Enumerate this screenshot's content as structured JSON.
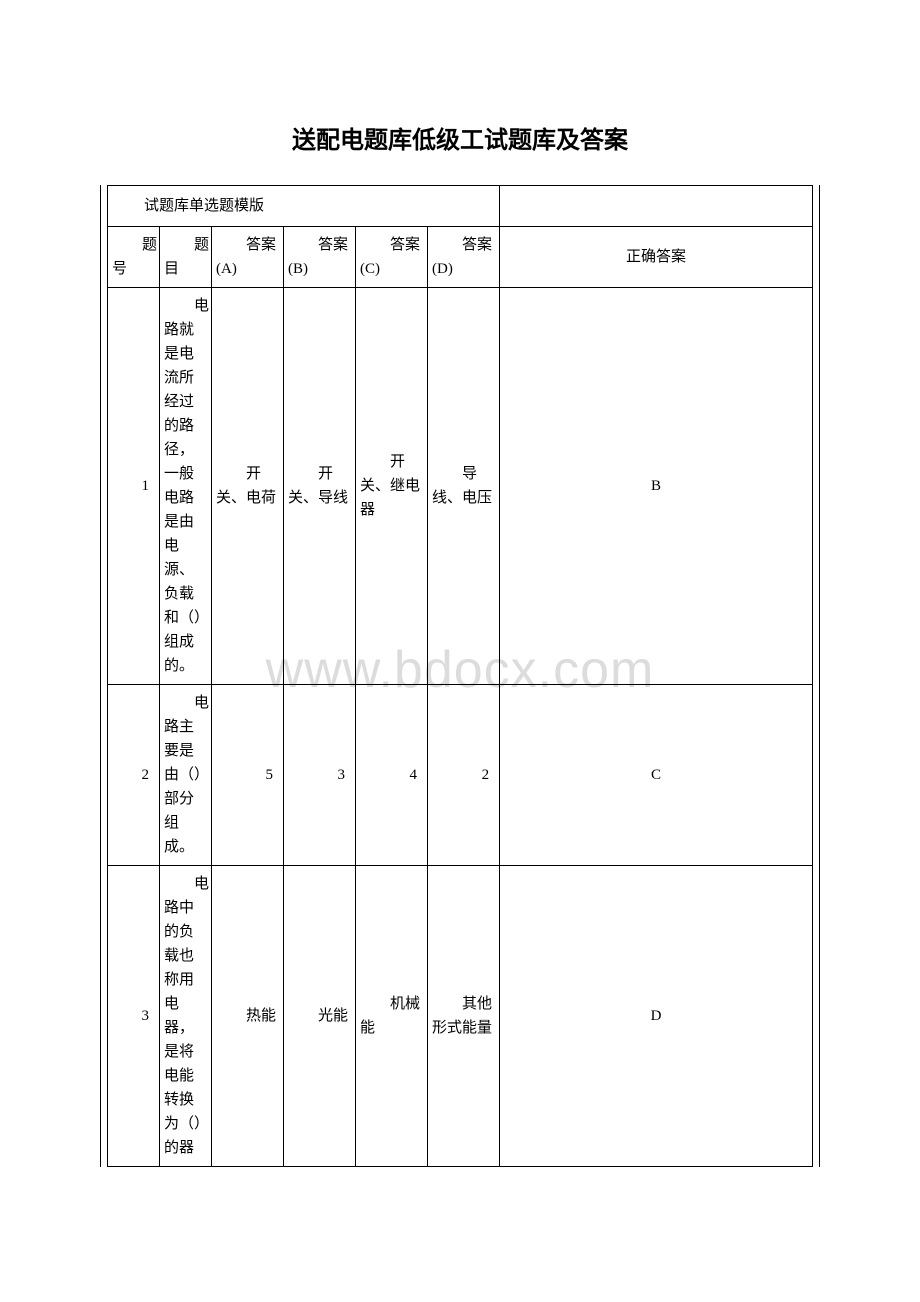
{
  "title": "送配电题库低级工试题库及答案",
  "watermark": "www.bdocx.com",
  "templateHeader": "试题库单选题模版",
  "headers": {
    "num": "题号",
    "question": "题目",
    "optA": "答案(A)",
    "optB": "答案(B)",
    "optC": "答案(C)",
    "optD": "答案(D)",
    "correct": "正确答案"
  },
  "rows": [
    {
      "num": "1",
      "question": "电路就是电流所经过的路径，一般电路是由电源、负载和（）组成的。",
      "optA": "开关、电荷",
      "optB": "开关、导线",
      "optC": "开关、继电器",
      "optD": "导线、电压",
      "correct": "B"
    },
    {
      "num": "2",
      "question": "电路主要是由（）部分组成。",
      "optA": "5",
      "optB": "3",
      "optC": "4",
      "optD": "2",
      "correct": "C"
    },
    {
      "num": "3",
      "question": "电路中的负载也称用电器，是将电能转换为（）的器",
      "optA": "热能",
      "optB": "光能",
      "optC": "机械能",
      "optD": "其他形式能量",
      "correct": "D"
    }
  ],
  "colors": {
    "text": "#000000",
    "border": "#000000",
    "background": "#ffffff",
    "watermark": "#dcdcdc"
  }
}
